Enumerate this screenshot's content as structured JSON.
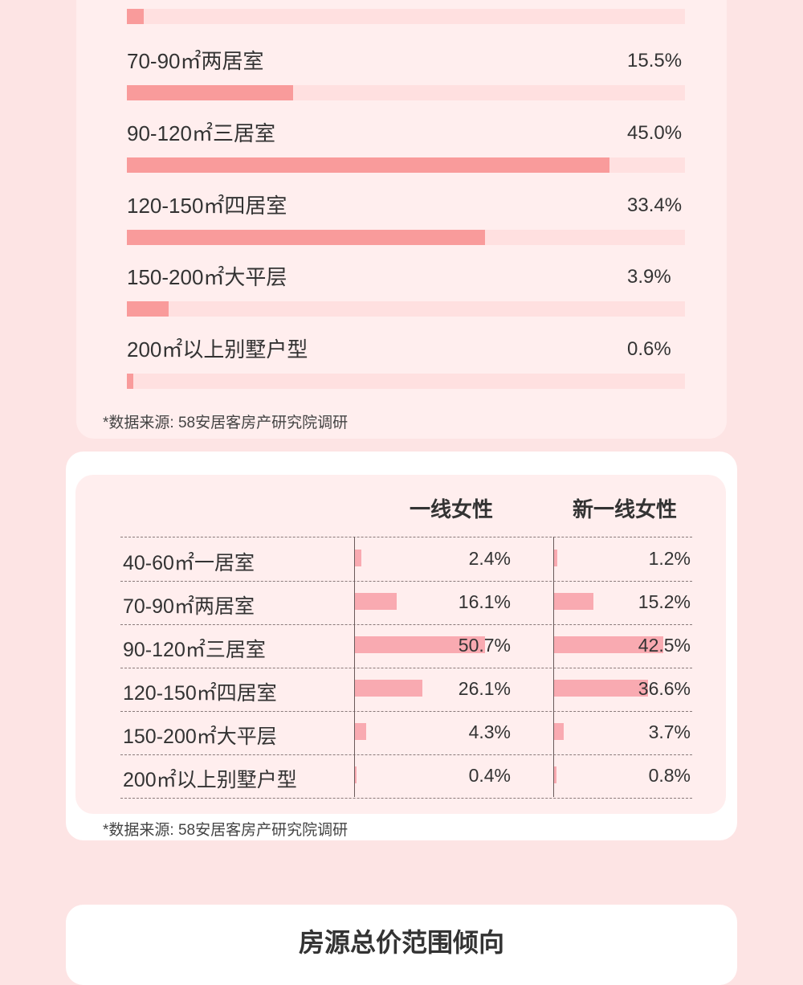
{
  "chart_data": [
    {
      "type": "bar",
      "orientation": "horizontal",
      "categories": [
        "",
        "70-90㎡两居室",
        "90-120㎡三居室",
        "120-150㎡四居室",
        "150-200㎡大平层",
        "200㎡以上别墅户型"
      ],
      "values": [
        1.6,
        15.5,
        45.0,
        33.4,
        3.9,
        0.6
      ],
      "value_labels": [
        "",
        "15.5%",
        "45.0%",
        "33.4%",
        "3.9%",
        "0.6%"
      ],
      "xlim": [
        0,
        52
      ],
      "source": "*数据来源: 58安居客房产研究院调研"
    },
    {
      "type": "table",
      "columns": [
        "一线女性",
        "新一线女性"
      ],
      "categories": [
        "40-60㎡一居室",
        "70-90㎡两居室",
        "90-120㎡三居室",
        "120-150㎡四居室",
        "150-200㎡大平层",
        "200㎡以上别墅户型"
      ],
      "series": [
        {
          "name": "一线女性",
          "values": [
            2.4,
            16.1,
            50.7,
            26.1,
            4.3,
            0.4
          ],
          "labels": [
            "2.4%",
            "16.1%",
            "50.7%",
            "26.1%",
            "4.3%",
            "0.4%"
          ]
        },
        {
          "name": "新一线女性",
          "values": [
            1.2,
            15.2,
            42.5,
            36.6,
            3.7,
            0.8
          ],
          "labels": [
            "1.2%",
            "15.2%",
            "42.5%",
            "36.6%",
            "3.7%",
            "0.8%"
          ]
        }
      ],
      "source": "*数据来源: 58安居客房产研究院调研"
    }
  ],
  "next_section": {
    "title": "房源总价范围倾向"
  },
  "colors": {
    "page_bg": "#fde4e4",
    "card_bg": "#ffeeee",
    "bar_fill": "#f99b9b",
    "bar_track": "#ffe0e0",
    "table_bar": "#f9aab1"
  }
}
